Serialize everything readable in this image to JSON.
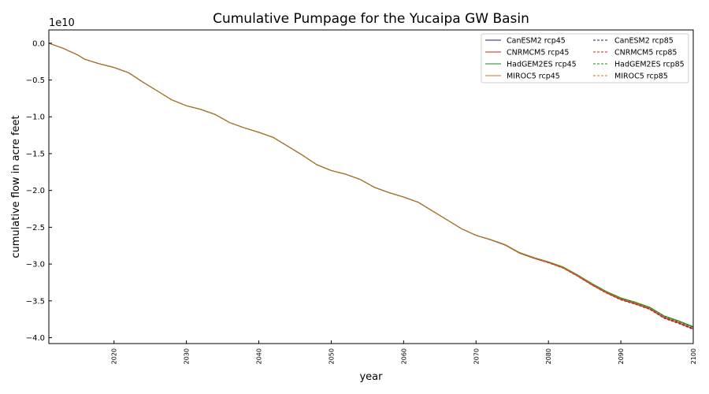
{
  "chart_data": {
    "type": "line",
    "title": "Cumulative Pumpage for the Yucaipa GW Basin",
    "xlabel": "year",
    "ylabel": "cumulative flow in acre feet",
    "y_offset_text": "1e10",
    "xlim": [
      2011,
      2100
    ],
    "ylim": [
      -4.08,
      0.18
    ],
    "y_scale_multiplier": 10000000000,
    "xticks": [
      2020,
      2030,
      2040,
      2050,
      2060,
      2070,
      2080,
      2090,
      2100
    ],
    "xtick_labels": [
      "2020",
      "2030",
      "2040",
      "2050",
      "2060",
      "2070",
      "2080",
      "2090",
      "2100"
    ],
    "yticks": [
      0,
      -0.5,
      -1.0,
      -1.5,
      -2.0,
      -2.5,
      -3.0,
      -3.5,
      -4.0
    ],
    "ytick_labels": [
      "0.0",
      "−0.5",
      "−1.0",
      "−1.5",
      "−2.0",
      "−2.5",
      "−3.0",
      "−3.5",
      "−4.0"
    ],
    "grid": false,
    "legend_position": "top-right",
    "legend_columns": 2,
    "base_curve": {
      "x": [
        2011,
        2013,
        2015,
        2016,
        2018,
        2020,
        2022,
        2024,
        2026,
        2028,
        2030,
        2032,
        2034,
        2036,
        2038,
        2040,
        2042,
        2044,
        2046,
        2048,
        2050,
        2052,
        2054,
        2056,
        2058,
        2060,
        2062,
        2064,
        2066,
        2068,
        2070,
        2072,
        2074,
        2076,
        2078,
        2080,
        2082,
        2084,
        2086,
        2088,
        2090,
        2092,
        2094,
        2096,
        2098,
        2100
      ],
      "y": [
        0.0,
        -0.07,
        -0.16,
        -0.22,
        -0.28,
        -0.33,
        -0.4,
        -0.53,
        -0.65,
        -0.77,
        -0.85,
        -0.9,
        -0.97,
        -1.08,
        -1.15,
        -1.21,
        -1.28,
        -1.4,
        -1.52,
        -1.65,
        -1.73,
        -1.78,
        -1.85,
        -1.96,
        -2.03,
        -2.09,
        -2.16,
        -2.28,
        -2.4,
        -2.52,
        -2.61,
        -2.67,
        -2.74,
        -2.85,
        -2.92,
        -2.98,
        -3.05,
        -3.16,
        -3.28,
        -3.39,
        -3.48,
        -3.54,
        -3.61,
        -3.73,
        -3.8,
        -3.88
      ]
    },
    "series": [
      {
        "name": "CanESM2 rcp45",
        "color": "#1f1f7a",
        "dash": "solid",
        "end_adjust": 0.0
      },
      {
        "name": "CNRMCM5 rcp45",
        "color": "#e31a1c",
        "dash": "solid",
        "end_adjust": 0.0
      },
      {
        "name": "HadGEM2ES rcp45",
        "color": "#1a8a1a",
        "dash": "solid",
        "end_adjust": 0.03
      },
      {
        "name": "MIROC5 rcp45",
        "color": "#c07820",
        "dash": "solid",
        "end_adjust": 0.02
      },
      {
        "name": "CanESM2 rcp85",
        "color": "#1f1f7a",
        "dash": "dashed",
        "end_adjust": 0.0
      },
      {
        "name": "CNRMCM5 rcp85",
        "color": "#e31a1c",
        "dash": "dashed",
        "end_adjust": -0.01
      },
      {
        "name": "HadGEM2ES rcp85",
        "color": "#1a8a1a",
        "dash": "dashed",
        "end_adjust": 0.02
      },
      {
        "name": "MIROC5 rcp85",
        "color": "#c07820",
        "dash": "dashed",
        "end_adjust": 0.01
      }
    ]
  }
}
